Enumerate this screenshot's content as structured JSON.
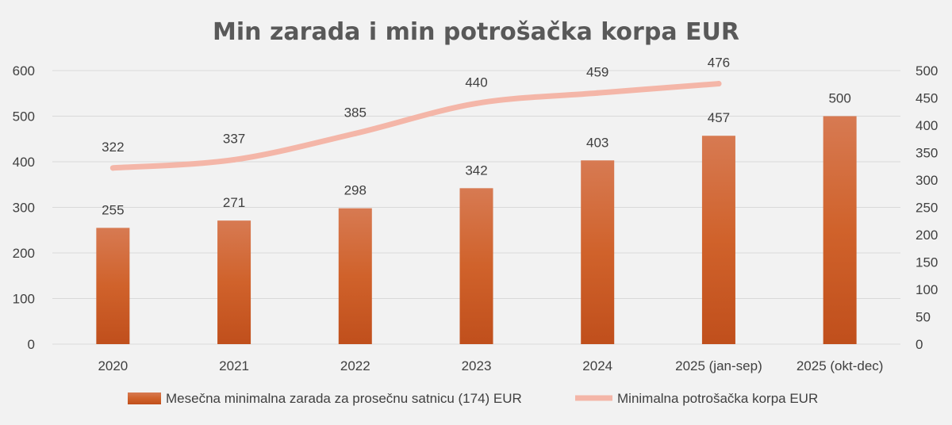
{
  "chart_data": {
    "type": "bar",
    "title": "Min zarada i min potrošačka korpa EUR",
    "categories": [
      "2020",
      "2021",
      "2022",
      "2023",
      "2024",
      "2025 (jan-sep)",
      "2025 (okt-dec)"
    ],
    "series": [
      {
        "name": "Mesečna minimalna zarada za prosečnu satnicu (174) EUR",
        "type": "bar",
        "axis": "left",
        "color": "#c55a2a",
        "values": [
          255,
          271,
          298,
          342,
          403,
          457,
          500
        ]
      },
      {
        "name": "Minimalna potrošačka korpa EUR",
        "type": "line",
        "axis": "right",
        "color": "#f4b6a8",
        "values": [
          322,
          337,
          385,
          440,
          459,
          476,
          null
        ]
      }
    ],
    "y_left": {
      "ylim": [
        0,
        600
      ],
      "ticks": [
        0,
        100,
        200,
        300,
        400,
        500,
        600
      ]
    },
    "y_right": {
      "ylim": [
        0,
        500
      ],
      "ticks": [
        0,
        50,
        100,
        150,
        200,
        250,
        300,
        350,
        400,
        450,
        500
      ]
    },
    "grid": true,
    "legend": "bottom"
  }
}
